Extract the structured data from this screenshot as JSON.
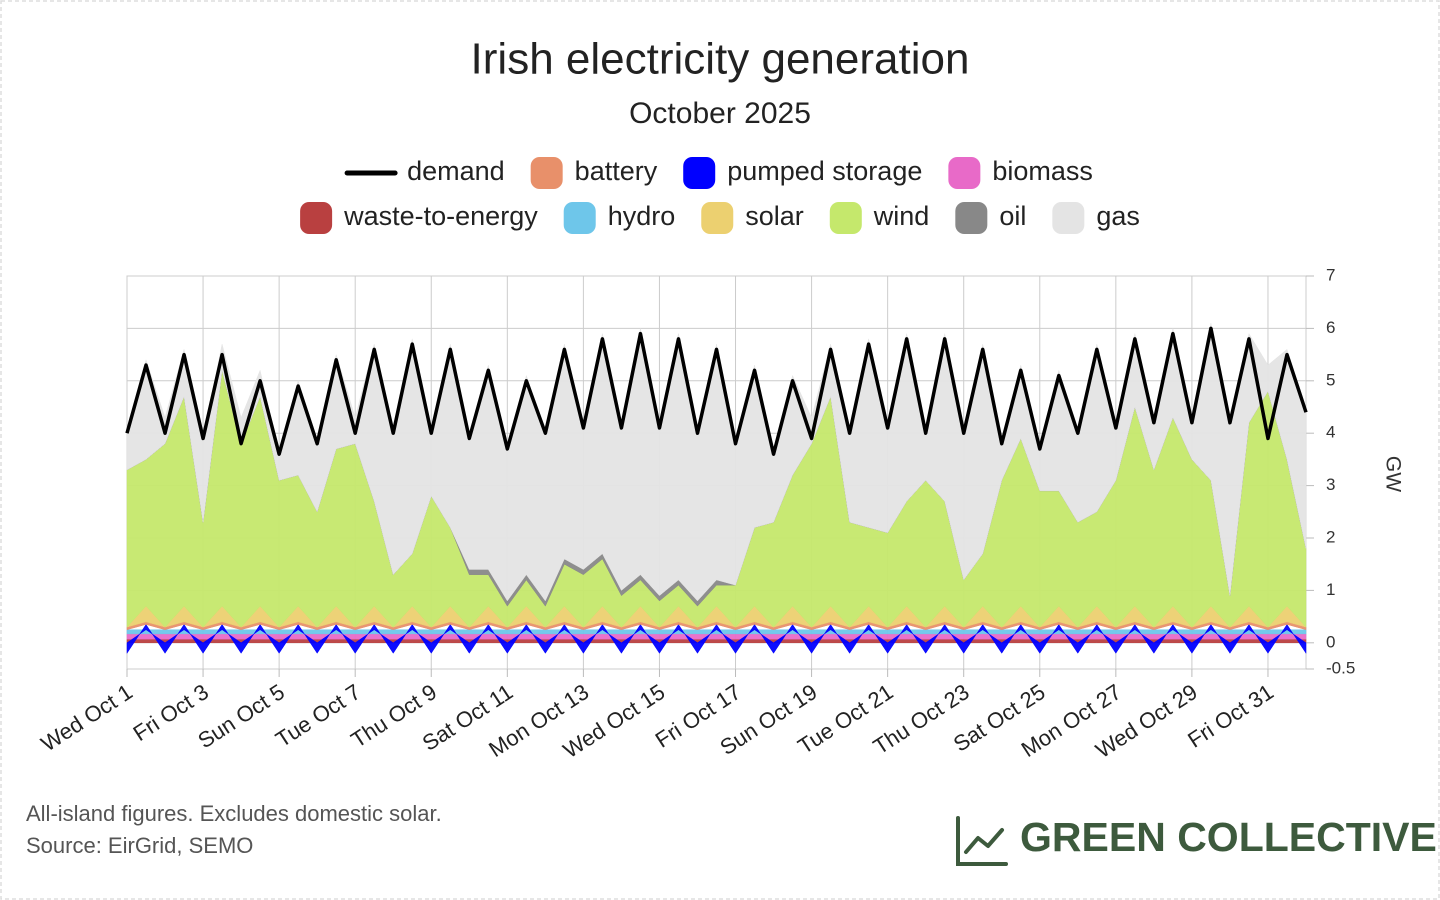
{
  "chart_data": {
    "type": "area",
    "stacked": true,
    "title": "Irish electricity generation",
    "subtitle": "October 2025",
    "y_label": "GW",
    "notes": [
      "All-island figures. Excludes domestic solar.",
      "Source: EirGrid, SEMO"
    ],
    "brand": "GREEN COLLECTIVE",
    "grid": true,
    "x": [
      1,
      1.5,
      2,
      2.5,
      3,
      3.5,
      4,
      4.5,
      5,
      5.5,
      6,
      6.5,
      7,
      7.5,
      8,
      8.5,
      9,
      9.5,
      10,
      10.5,
      11,
      11.5,
      12,
      12.5,
      13,
      13.5,
      14,
      14.5,
      15,
      15.5,
      16,
      16.5,
      17,
      17.5,
      18,
      18.5,
      19,
      19.5,
      20,
      20.5,
      21,
      21.5,
      22,
      22.5,
      23,
      23.5,
      24,
      24.5,
      25,
      25.5,
      26,
      26.5,
      27,
      27.5,
      28,
      28.5,
      29,
      29.5,
      30,
      30.5,
      31,
      31.5,
      32
    ],
    "xlim": [
      1,
      32
    ],
    "xticks": [
      {
        "value": 1,
        "label": "Wed Oct 1"
      },
      {
        "value": 3,
        "label": "Fri Oct 3"
      },
      {
        "value": 5,
        "label": "Sun Oct 5"
      },
      {
        "value": 7,
        "label": "Tue Oct 7"
      },
      {
        "value": 9,
        "label": "Thu Oct 9"
      },
      {
        "value": 11,
        "label": "Sat Oct 11"
      },
      {
        "value": 13,
        "label": "Mon Oct 13"
      },
      {
        "value": 15,
        "label": "Wed Oct 15"
      },
      {
        "value": 17,
        "label": "Fri Oct 17"
      },
      {
        "value": 19,
        "label": "Sun Oct 19"
      },
      {
        "value": 21,
        "label": "Tue Oct 21"
      },
      {
        "value": 23,
        "label": "Thu Oct 23"
      },
      {
        "value": 25,
        "label": "Sat Oct 25"
      },
      {
        "value": 27,
        "label": "Mon Oct 27"
      },
      {
        "value": 29,
        "label": "Wed Oct 29"
      },
      {
        "value": 31,
        "label": "Fri Oct 31"
      }
    ],
    "ylim": [
      -0.5,
      7
    ],
    "yticks": [
      -0.5,
      0,
      1,
      2,
      3,
      4,
      5,
      6,
      7
    ],
    "series": [
      {
        "name": "demand",
        "type": "line",
        "color": "#000000",
        "values": [
          4.0,
          5.3,
          4.0,
          5.5,
          3.9,
          5.5,
          3.8,
          5.0,
          3.6,
          4.9,
          3.8,
          5.4,
          4.0,
          5.6,
          4.0,
          5.7,
          4.0,
          5.6,
          3.9,
          5.2,
          3.7,
          5.0,
          4.0,
          5.6,
          4.1,
          5.8,
          4.1,
          5.9,
          4.1,
          5.8,
          4.0,
          5.6,
          3.8,
          5.2,
          3.6,
          5.0,
          3.9,
          5.6,
          4.0,
          5.7,
          4.1,
          5.8,
          4.0,
          5.8,
          4.0,
          5.6,
          3.8,
          5.2,
          3.7,
          5.1,
          4.0,
          5.6,
          4.1,
          5.8,
          4.2,
          5.9,
          4.2,
          6.0,
          4.2,
          5.8,
          3.9,
          5.5,
          4.4
        ]
      },
      {
        "name": "battery",
        "color": "#e8906a",
        "values": [
          0.05,
          0.05,
          0.05,
          0.05,
          0.05,
          0.05,
          0.05,
          0.05,
          0.05,
          0.05,
          0.05,
          0.05,
          0.05,
          0.05,
          0.05,
          0.05,
          0.05,
          0.05,
          0.05,
          0.05,
          0.05,
          0.05,
          0.05,
          0.05,
          0.05,
          0.05,
          0.05,
          0.05,
          0.05,
          0.05,
          0.05,
          0.05,
          0.05,
          0.05,
          0.05,
          0.05,
          0.05,
          0.05,
          0.05,
          0.05,
          0.05,
          0.05,
          0.05,
          0.05,
          0.05,
          0.05,
          0.05,
          0.05,
          0.05,
          0.05,
          0.05,
          0.05,
          0.05,
          0.05,
          0.05,
          0.05,
          0.05,
          0.05,
          0.05,
          0.05,
          0.05,
          0.05,
          0.05
        ]
      },
      {
        "name": "pumped storage",
        "color": "#0000ff",
        "values": [
          -0.2,
          0.1,
          -0.2,
          0.1,
          -0.2,
          0.1,
          -0.2,
          0.1,
          -0.2,
          0.1,
          -0.2,
          0.1,
          -0.2,
          0.1,
          -0.2,
          0.1,
          -0.2,
          0.1,
          -0.2,
          0.1,
          -0.2,
          0.1,
          -0.2,
          0.1,
          -0.2,
          0.1,
          -0.2,
          0.1,
          -0.2,
          0.1,
          -0.2,
          0.1,
          -0.2,
          0.1,
          -0.2,
          0.1,
          -0.2,
          0.1,
          -0.2,
          0.1,
          -0.2,
          0.1,
          -0.2,
          0.1,
          -0.2,
          0.1,
          -0.2,
          0.1,
          -0.2,
          0.1,
          -0.2,
          0.1,
          -0.2,
          0.1,
          -0.2,
          0.1,
          -0.2,
          0.1,
          -0.2,
          0.1,
          -0.2,
          0.1,
          -0.2
        ]
      },
      {
        "name": "biomass",
        "color": "#e86ac8",
        "values": [
          0.1,
          0.1,
          0.1,
          0.1,
          0.1,
          0.1,
          0.1,
          0.1,
          0.1,
          0.1,
          0.1,
          0.1,
          0.1,
          0.1,
          0.1,
          0.1,
          0.1,
          0.1,
          0.1,
          0.1,
          0.1,
          0.1,
          0.1,
          0.1,
          0.1,
          0.1,
          0.1,
          0.1,
          0.1,
          0.1,
          0.1,
          0.1,
          0.1,
          0.1,
          0.1,
          0.1,
          0.1,
          0.1,
          0.1,
          0.1,
          0.1,
          0.1,
          0.1,
          0.1,
          0.1,
          0.1,
          0.1,
          0.1,
          0.1,
          0.1,
          0.1,
          0.1,
          0.1,
          0.1,
          0.1,
          0.1,
          0.1,
          0.1,
          0.1,
          0.1,
          0.1,
          0.1,
          0.1
        ]
      },
      {
        "name": "waste-to-energy",
        "color": "#b94040",
        "values": [
          0.07,
          0.07,
          0.07,
          0.07,
          0.07,
          0.07,
          0.07,
          0.07,
          0.07,
          0.07,
          0.07,
          0.07,
          0.07,
          0.07,
          0.07,
          0.07,
          0.07,
          0.07,
          0.07,
          0.07,
          0.07,
          0.07,
          0.07,
          0.07,
          0.07,
          0.07,
          0.07,
          0.07,
          0.07,
          0.07,
          0.07,
          0.07,
          0.07,
          0.07,
          0.07,
          0.07,
          0.07,
          0.07,
          0.07,
          0.07,
          0.07,
          0.07,
          0.07,
          0.07,
          0.07,
          0.07,
          0.07,
          0.07,
          0.07,
          0.07,
          0.07,
          0.07,
          0.07,
          0.07,
          0.07,
          0.07,
          0.07,
          0.07,
          0.07,
          0.07,
          0.07,
          0.07,
          0.07
        ]
      },
      {
        "name": "hydro",
        "color": "#6ec6ea",
        "values": [
          0.08,
          0.08,
          0.08,
          0.08,
          0.08,
          0.08,
          0.08,
          0.08,
          0.08,
          0.08,
          0.08,
          0.08,
          0.08,
          0.08,
          0.08,
          0.08,
          0.08,
          0.08,
          0.08,
          0.08,
          0.08,
          0.08,
          0.08,
          0.08,
          0.08,
          0.08,
          0.08,
          0.08,
          0.08,
          0.08,
          0.08,
          0.08,
          0.08,
          0.08,
          0.08,
          0.08,
          0.08,
          0.08,
          0.08,
          0.08,
          0.08,
          0.08,
          0.08,
          0.08,
          0.08,
          0.08,
          0.08,
          0.08,
          0.08,
          0.08,
          0.08,
          0.08,
          0.08,
          0.08,
          0.08,
          0.08,
          0.08,
          0.08,
          0.08,
          0.08,
          0.08,
          0.08,
          0.08
        ]
      },
      {
        "name": "solar",
        "color": "#ecd070",
        "values": [
          0,
          0.3,
          0,
          0.3,
          0,
          0.3,
          0,
          0.3,
          0,
          0.3,
          0,
          0.3,
          0,
          0.3,
          0,
          0.3,
          0,
          0.3,
          0,
          0.3,
          0,
          0.3,
          0,
          0.3,
          0,
          0.3,
          0,
          0.3,
          0,
          0.3,
          0,
          0.3,
          0,
          0.3,
          0,
          0.3,
          0,
          0.3,
          0,
          0.3,
          0,
          0.3,
          0,
          0.3,
          0,
          0.3,
          0,
          0.3,
          0,
          0.3,
          0,
          0.3,
          0,
          0.3,
          0,
          0.3,
          0,
          0.3,
          0,
          0.3,
          0,
          0.3,
          0
        ]
      },
      {
        "name": "wind",
        "color": "#c5e86c",
        "values": [
          3.0,
          2.8,
          3.5,
          4.0,
          2.0,
          4.5,
          3.5,
          4.0,
          2.8,
          2.5,
          2.2,
          3.0,
          3.5,
          2.0,
          1.0,
          1.0,
          2.5,
          1.5,
          1.0,
          0.6,
          0.4,
          0.5,
          0.4,
          0.8,
          1.0,
          0.9,
          0.6,
          0.5,
          0.5,
          0.4,
          0.4,
          0.4,
          0.8,
          1.5,
          2.0,
          2.5,
          3.5,
          4.0,
          2.0,
          1.5,
          1.8,
          2.0,
          2.8,
          2.0,
          0.9,
          1.0,
          2.8,
          3.2,
          2.6,
          2.2,
          2.0,
          1.8,
          2.8,
          3.8,
          3.0,
          3.6,
          3.2,
          2.4,
          0.6,
          3.5,
          4.5,
          2.8,
          1.5
        ]
      },
      {
        "name": "oil",
        "color": "#888888",
        "values": [
          0,
          0,
          0,
          0,
          0,
          0,
          0,
          0,
          0,
          0,
          0,
          0,
          0,
          0,
          0,
          0,
          0,
          0,
          0.1,
          0.1,
          0.1,
          0.1,
          0.1,
          0.1,
          0.1,
          0.1,
          0.1,
          0.1,
          0.1,
          0.1,
          0.1,
          0.1,
          0,
          0,
          0,
          0,
          0,
          0,
          0,
          0,
          0,
          0,
          0,
          0,
          0,
          0,
          0,
          0,
          0,
          0,
          0,
          0,
          0,
          0,
          0,
          0,
          0,
          0,
          0,
          0,
          0,
          0,
          0
        ]
      },
      {
        "name": "gas",
        "color": "#e4e4e4",
        "values": [
          0.7,
          1.9,
          0.5,
          0.9,
          1.6,
          0.5,
          0.5,
          0.5,
          0.5,
          1.8,
          1.3,
          1.8,
          0.5,
          3.0,
          2.7,
          4.1,
          1.2,
          3.5,
          2.5,
          3.9,
          2.9,
          3.8,
          3.2,
          4.1,
          2.7,
          4.2,
          3.1,
          4.7,
          3.2,
          4.7,
          3.2,
          4.5,
          2.7,
          3.1,
          1.3,
          1.9,
          0.5,
          1.0,
          1.7,
          3.6,
          2.0,
          3.2,
          0.9,
          3.2,
          2.8,
          4.0,
          0.7,
          1.4,
          0.8,
          2.3,
          1.7,
          3.2,
          1.0,
          1.4,
          0.9,
          1.7,
          0.7,
          3.0,
          3.3,
          1.7,
          0.5,
          2.1,
          2.6
        ]
      }
    ]
  }
}
